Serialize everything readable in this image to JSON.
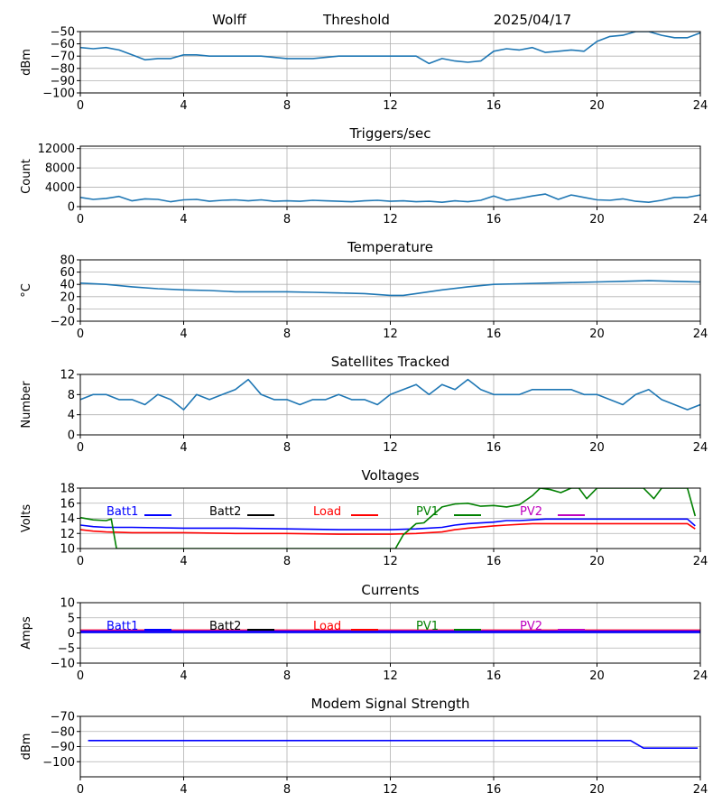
{
  "header": {
    "station": "Wolff",
    "title": "Threshold",
    "date": "2025/04/17"
  },
  "colors": {
    "series_default": "#1f77b4",
    "batt1": "#0000ff",
    "batt2": "#000000",
    "load": "#ff0000",
    "pv1": "#008000",
    "pv2": "#bf00bf",
    "grid": "#b0b0b0"
  },
  "chart_data": [
    {
      "type": "line",
      "ylabel": "dBm",
      "xlim": [
        0,
        24
      ],
      "ylim": [
        -100,
        -50
      ],
      "xticks": [
        0,
        4,
        8,
        12,
        16,
        20,
        24
      ],
      "yticks": [
        -100,
        -90,
        -80,
        -70,
        -60,
        -50
      ],
      "grid": true,
      "series": [
        {
          "color": "#1f77b4",
          "x": [
            0,
            0.5,
            1,
            1.5,
            2,
            2.5,
            3,
            3.5,
            4,
            4.5,
            5,
            6,
            7,
            8,
            9,
            10,
            11,
            12,
            12.5,
            13,
            13.5,
            14,
            14.5,
            15,
            15.5,
            16,
            16.5,
            17,
            17.5,
            18,
            18.5,
            19,
            19.5,
            20,
            20.5,
            21,
            21.5,
            22,
            22.5,
            23,
            23.5,
            24
          ],
          "y": [
            -63,
            -64,
            -63,
            -65,
            -69,
            -73,
            -72,
            -72,
            -69,
            -69,
            -70,
            -70,
            -70,
            -72,
            -72,
            -70,
            -70,
            -70,
            -70,
            -70,
            -76,
            -72,
            -74,
            -75,
            -74,
            -66,
            -64,
            -65,
            -63,
            -67,
            -66,
            -65,
            -66,
            -58,
            -54,
            -53,
            -50,
            -50,
            -53,
            -55,
            -55,
            -51
          ]
        }
      ]
    },
    {
      "type": "line",
      "title": "Triggers/sec",
      "ylabel": "Count",
      "xlim": [
        0,
        24
      ],
      "ylim": [
        0,
        12500
      ],
      "xticks": [
        0,
        4,
        8,
        12,
        16,
        20,
        24
      ],
      "yticks": [
        0,
        4000,
        8000,
        12000
      ],
      "grid": true,
      "series": [
        {
          "color": "#1f77b4",
          "x": [
            0,
            0.5,
            1,
            1.5,
            2,
            2.5,
            3,
            3.5,
            4,
            4.5,
            5,
            5.5,
            6,
            6.5,
            7,
            7.5,
            8,
            8.5,
            9,
            9.5,
            10,
            10.5,
            11,
            11.5,
            12,
            12.5,
            13,
            13.5,
            14,
            14.5,
            15,
            15.5,
            16,
            16.5,
            17,
            17.5,
            18,
            18.5,
            19,
            19.5,
            20,
            20.5,
            21,
            21.5,
            22,
            22.5,
            23,
            23.5,
            24
          ],
          "y": [
            1900,
            1500,
            1700,
            2100,
            1200,
            1600,
            1500,
            1000,
            1400,
            1500,
            1100,
            1300,
            1400,
            1200,
            1400,
            1100,
            1200,
            1100,
            1300,
            1200,
            1100,
            1000,
            1200,
            1300,
            1100,
            1200,
            1000,
            1100,
            900,
            1200,
            1000,
            1300,
            2200,
            1300,
            1700,
            2200,
            2600,
            1500,
            2400,
            1900,
            1400,
            1300,
            1600,
            1100,
            900,
            1300,
            1900,
            1900,
            2400
          ]
        }
      ]
    },
    {
      "type": "line",
      "title": "Temperature",
      "ylabel": "°C",
      "xlim": [
        0,
        24
      ],
      "ylim": [
        -20,
        80
      ],
      "xticks": [
        0,
        4,
        8,
        12,
        16,
        20,
        24
      ],
      "yticks": [
        -20,
        0,
        20,
        40,
        60,
        80
      ],
      "grid": true,
      "series": [
        {
          "color": "#1f77b4",
          "x": [
            0,
            1,
            2,
            3,
            4,
            5,
            6,
            7,
            8,
            9,
            10,
            11,
            12,
            12.5,
            13,
            14,
            15,
            16,
            17,
            18,
            19,
            20,
            21,
            22,
            23,
            24
          ],
          "y": [
            42,
            40,
            36,
            33,
            31,
            30,
            28,
            28,
            28,
            27,
            26,
            25,
            22,
            22,
            25,
            31,
            36,
            40,
            41,
            42,
            43,
            44,
            45,
            46,
            45,
            44
          ]
        }
      ]
    },
    {
      "type": "line",
      "title": "Satellites Tracked",
      "ylabel": "Number",
      "xlim": [
        0,
        24
      ],
      "ylim": [
        0,
        12
      ],
      "xticks": [
        0,
        4,
        8,
        12,
        16,
        20,
        24
      ],
      "yticks": [
        0,
        4,
        8,
        12
      ],
      "grid": true,
      "series": [
        {
          "color": "#1f77b4",
          "x": [
            0,
            0.5,
            1,
            1.5,
            2,
            2.5,
            3,
            3.5,
            4,
            4.5,
            5,
            5.5,
            6,
            6.5,
            7,
            7.5,
            8,
            8.5,
            9,
            9.5,
            10,
            10.5,
            11,
            11.5,
            12,
            12.5,
            13,
            13.5,
            14,
            14.5,
            15,
            15.5,
            16,
            16.5,
            17,
            17.5,
            18,
            18.5,
            19,
            19.5,
            20,
            20.5,
            21,
            21.5,
            22,
            22.5,
            23,
            23.5,
            24
          ],
          "y": [
            7,
            8,
            8,
            7,
            7,
            6,
            8,
            7,
            5,
            8,
            7,
            8,
            9,
            11,
            8,
            7,
            7,
            6,
            7,
            7,
            8,
            7,
            7,
            6,
            8,
            9,
            10,
            8,
            10,
            9,
            11,
            9,
            8,
            8,
            8,
            9,
            9,
            9,
            9,
            8,
            8,
            7,
            6,
            8,
            9,
            7,
            6,
            5,
            6
          ]
        }
      ]
    },
    {
      "type": "line",
      "title": "Voltages",
      "ylabel": "Volts",
      "xlim": [
        0,
        24
      ],
      "ylim": [
        10,
        18
      ],
      "xticks": [
        0,
        4,
        8,
        12,
        16,
        20,
        24
      ],
      "yticks": [
        10,
        12,
        14,
        16,
        18
      ],
      "grid": true,
      "legend": [
        "Batt1",
        "Batt2",
        "Load",
        "PV1",
        "PV2"
      ],
      "series": [
        {
          "name": "Batt1",
          "color": "#0000ff",
          "x": [
            0,
            0.5,
            1,
            2,
            4,
            6,
            8,
            10,
            12,
            13,
            14,
            14.5,
            15,
            16,
            16.5,
            17,
            17.5,
            18,
            20,
            22,
            23.5,
            23.8
          ],
          "y": [
            13.1,
            12.9,
            12.8,
            12.8,
            12.7,
            12.7,
            12.6,
            12.5,
            12.5,
            12.6,
            12.8,
            13.1,
            13.3,
            13.5,
            13.7,
            13.7,
            13.8,
            13.9,
            13.9,
            13.9,
            13.9,
            13.0
          ]
        },
        {
          "name": "Load",
          "color": "#ff0000",
          "x": [
            0,
            0.5,
            1,
            2,
            4,
            6,
            8,
            10,
            12,
            13,
            14,
            14.5,
            15,
            16,
            16.5,
            17,
            17.5,
            18,
            20,
            22,
            23.5,
            23.8
          ],
          "y": [
            12.5,
            12.3,
            12.2,
            12.1,
            12.1,
            12.0,
            12.0,
            11.9,
            11.9,
            12.0,
            12.2,
            12.5,
            12.7,
            13.0,
            13.1,
            13.2,
            13.3,
            13.3,
            13.3,
            13.3,
            13.3,
            12.6
          ]
        },
        {
          "name": "PV1",
          "color": "#008000",
          "x": [
            0,
            0.5,
            1,
            1.2,
            1.4,
            12.2,
            12.5,
            13,
            13.3,
            14,
            14.5,
            15,
            15.5,
            16,
            16.5,
            17,
            17.5,
            17.8,
            18.2,
            18.6,
            19,
            19.3,
            19.6,
            20,
            20.3,
            20.6,
            21,
            21.4,
            21.8,
            22.2,
            22.5,
            22.8,
            23.2,
            23.5,
            23.8
          ],
          "y": [
            14.1,
            13.8,
            13.7,
            13.9,
            10,
            10,
            11.8,
            13.3,
            13.4,
            15.5,
            15.9,
            16.0,
            15.6,
            15.7,
            15.5,
            15.8,
            17.0,
            18.0,
            17.8,
            17.4,
            18.0,
            18.0,
            16.6,
            18.0,
            18.0,
            18.0,
            18.0,
            18.0,
            18.0,
            16.6,
            18.0,
            18.0,
            18.0,
            18.0,
            14.3
          ]
        }
      ]
    },
    {
      "type": "line",
      "title": "Currents",
      "ylabel": "Amps",
      "xlim": [
        0,
        24
      ],
      "ylim": [
        -10,
        10
      ],
      "xticks": [
        0,
        4,
        8,
        12,
        16,
        20,
        24
      ],
      "yticks": [
        -10,
        -5,
        0,
        5,
        10
      ],
      "grid": true,
      "legend": [
        "Batt1",
        "Batt2",
        "Load",
        "PV1",
        "PV2"
      ],
      "series": [
        {
          "name": "Load",
          "color": "#ff0000",
          "x": [
            0,
            24
          ],
          "y": [
            0.8,
            0.8
          ]
        },
        {
          "name": "PV2",
          "color": "#bf00bf",
          "x": [
            0,
            24
          ],
          "y": [
            0.6,
            0.6
          ]
        },
        {
          "name": "Batt1",
          "color": "#0000ff",
          "x": [
            0,
            24
          ],
          "y": [
            0.3,
            0.3
          ]
        }
      ]
    },
    {
      "type": "line",
      "title": "Modem Signal Strength",
      "ylabel": "dBm",
      "xlim": [
        0,
        24
      ],
      "ylim": [
        -110,
        -70
      ],
      "xticks": [
        0,
        4,
        8,
        12,
        16,
        20,
        24
      ],
      "yticks": [
        -100,
        -90,
        -80,
        -70
      ],
      "grid": true,
      "series": [
        {
          "color": "#0000ff",
          "x": [
            0.3,
            21.3,
            21.8,
            23.9
          ],
          "y": [
            -86,
            -86,
            -91,
            -91
          ]
        }
      ]
    }
  ]
}
